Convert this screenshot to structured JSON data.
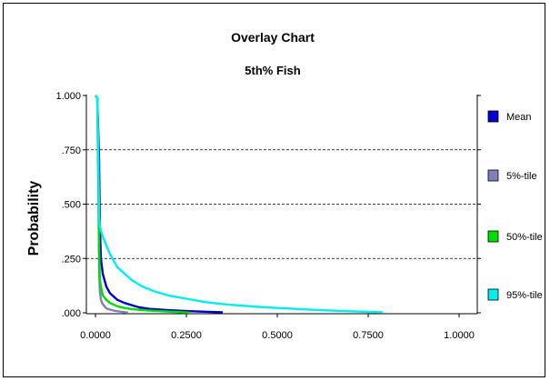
{
  "chart_data": {
    "type": "line",
    "title": "Overlay Chart",
    "subtitle": "5th% Fish",
    "xlabel": "",
    "ylabel": "Probability",
    "xlim": [
      0,
      1
    ],
    "ylim": [
      0,
      1
    ],
    "x_ticks": [
      0,
      0.25,
      0.5,
      0.75,
      1.0
    ],
    "x_tick_labels": [
      "0.0000",
      "0.2500",
      "0.5000",
      "0.7500",
      "1.0000"
    ],
    "y_ticks": [
      0,
      0.25,
      0.5,
      0.75,
      1.0
    ],
    "y_tick_labels": [
      ".000",
      ".250",
      ".500",
      ".750",
      "1.000"
    ],
    "grid": "horizontal-dashed",
    "legend_position": "right",
    "series": [
      {
        "name": "Mean",
        "color": "#0000cc",
        "x": [
          0.0,
          0.005,
          0.01,
          0.012,
          0.015,
          0.02,
          0.03,
          0.04,
          0.06,
          0.08,
          0.1,
          0.12,
          0.15,
          0.2,
          0.25,
          0.3,
          0.35
        ],
        "y": [
          1.0,
          0.99,
          0.7,
          0.4,
          0.25,
          0.18,
          0.12,
          0.09,
          0.06,
          0.045,
          0.035,
          0.025,
          0.018,
          0.012,
          0.008,
          0.005,
          0.002
        ]
      },
      {
        "name": "5%-tile",
        "color": "#8080b8",
        "x": [
          0.0,
          0.005,
          0.008,
          0.01,
          0.012,
          0.015,
          0.02,
          0.03,
          0.05,
          0.07,
          0.09
        ],
        "y": [
          1.0,
          0.99,
          0.6,
          0.2,
          0.1,
          0.06,
          0.04,
          0.02,
          0.01,
          0.005,
          0.001
        ]
      },
      {
        "name": "50%-tile",
        "color": "#00dd00",
        "x": [
          0.0,
          0.005,
          0.008,
          0.01,
          0.012,
          0.015,
          0.02,
          0.03,
          0.04,
          0.06,
          0.08,
          0.1,
          0.13,
          0.17,
          0.22,
          0.26
        ],
        "y": [
          1.0,
          0.99,
          0.6,
          0.3,
          0.16,
          0.12,
          0.08,
          0.06,
          0.045,
          0.03,
          0.022,
          0.017,
          0.012,
          0.008,
          0.004,
          0.001
        ]
      },
      {
        "name": "95%-tile",
        "color": "#00eeee",
        "x": [
          0.0,
          0.005,
          0.008,
          0.01,
          0.012,
          0.015,
          0.02,
          0.03,
          0.04,
          0.05,
          0.06,
          0.08,
          0.1,
          0.13,
          0.16,
          0.2,
          0.25,
          0.3,
          0.35,
          0.4,
          0.45,
          0.5,
          0.55,
          0.6,
          0.65,
          0.7,
          0.75,
          0.79
        ],
        "y": [
          1.0,
          0.99,
          0.7,
          0.45,
          0.4,
          0.38,
          0.35,
          0.31,
          0.27,
          0.24,
          0.21,
          0.18,
          0.15,
          0.12,
          0.1,
          0.08,
          0.065,
          0.05,
          0.04,
          0.033,
          0.027,
          0.022,
          0.018,
          0.014,
          0.01,
          0.007,
          0.004,
          0.002
        ]
      }
    ]
  }
}
